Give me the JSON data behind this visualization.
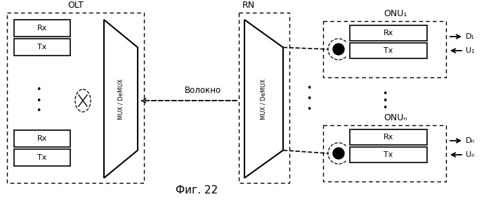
{
  "title": "Фиг. 22",
  "bg_color": "#ffffff",
  "olt_label": "OLT",
  "rn_label": "RN",
  "onu1_label": "ONU₁",
  "onun_label": "ONUₙ",
  "mux_label": "MUX / DeMUX",
  "fiber_label": "Волокно",
  "rx_label": "Rx",
  "tx_label": "Tx",
  "d1_label": "D₁",
  "u1_label": "U₁",
  "dn_label": "Dₙ",
  "un_label": "Uₙ"
}
